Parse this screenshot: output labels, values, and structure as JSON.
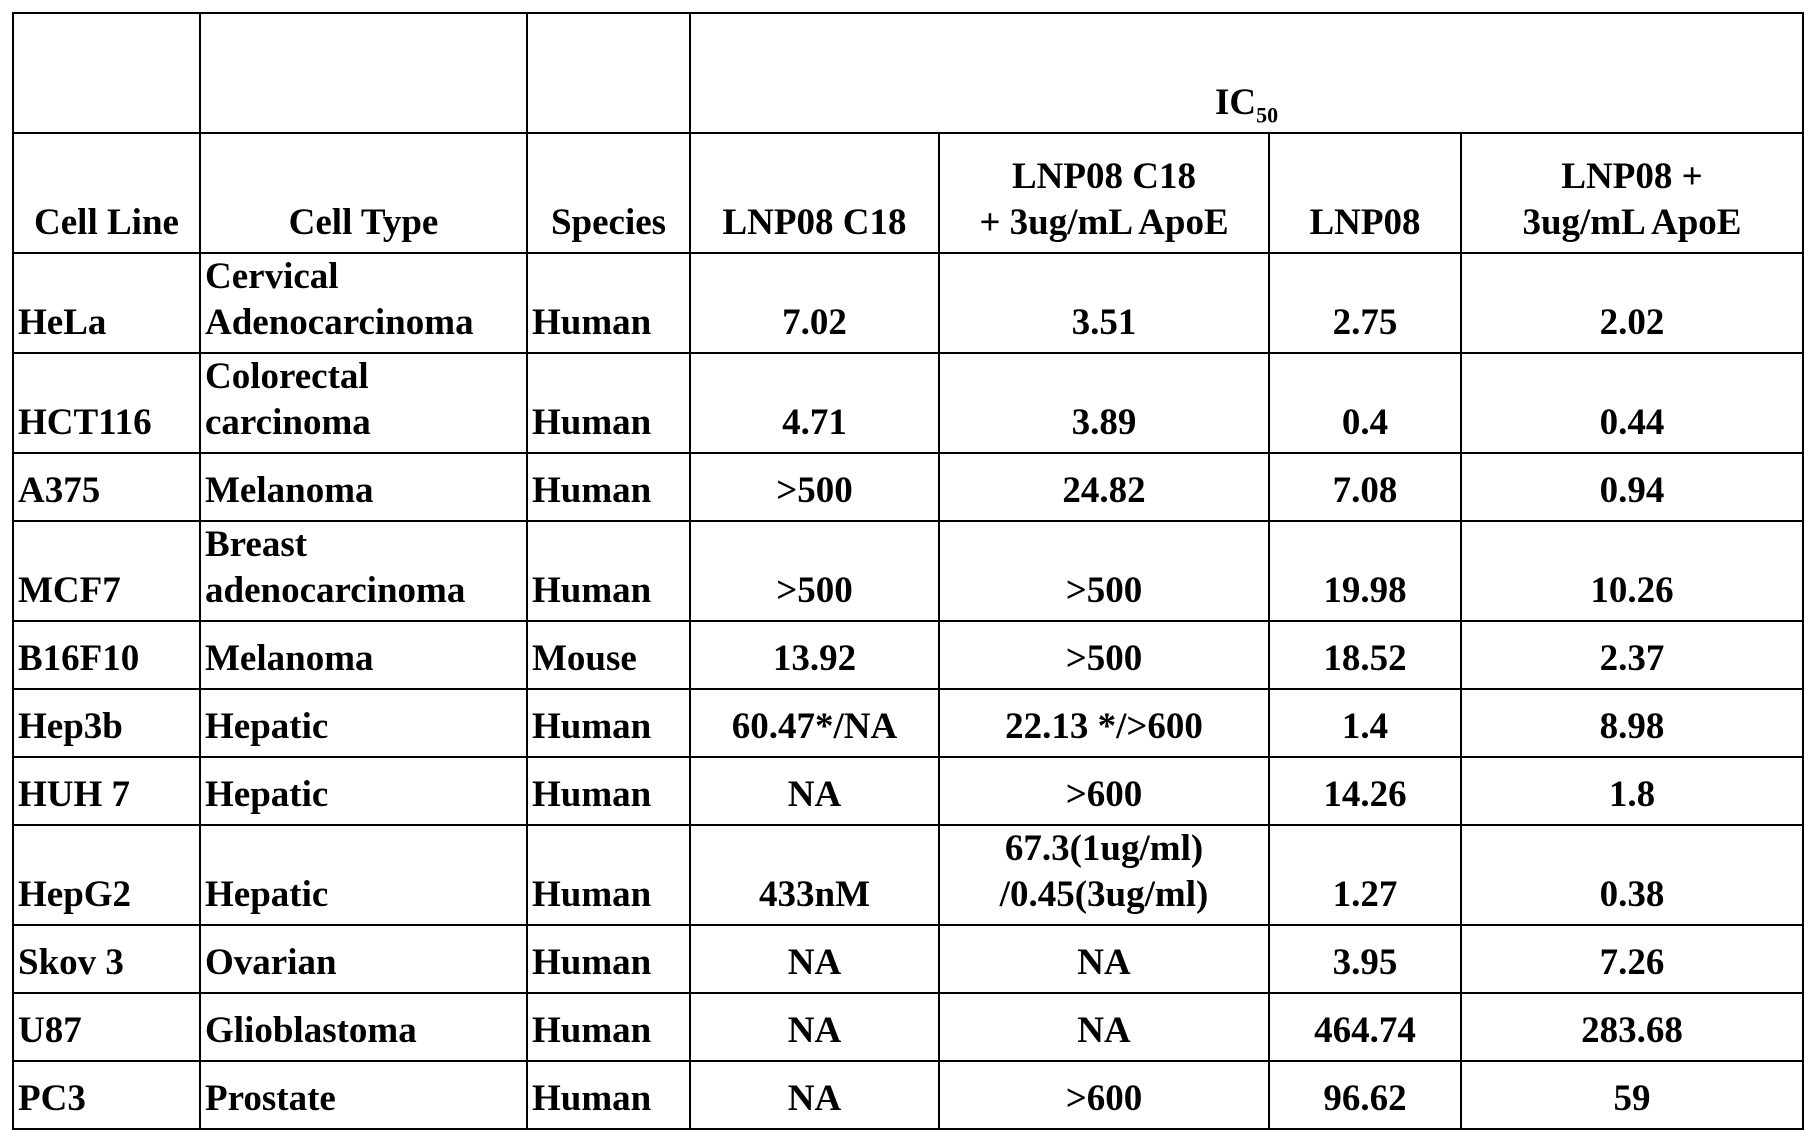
{
  "group_header": {
    "main": "IC",
    "subscript": "50"
  },
  "columns": [
    "Cell Line",
    "Cell Type",
    "Species",
    "LNP08 C18",
    "LNP08 C18 + 3ug/mL ApoE",
    "LNP08",
    "LNP08 + 3ug/mL ApoE"
  ],
  "column_lines": {
    "c4": [
      "LNP08 C18",
      "+ 3ug/mL ApoE"
    ],
    "c6": [
      "LNP08 +",
      "3ug/mL ApoE"
    ]
  },
  "rows": [
    {
      "cell_line": "HeLa",
      "cell_type_lines": [
        "Cervical",
        "Adenocarcinoma"
      ],
      "species": "Human",
      "c3": "7.02",
      "c4_lines": [
        "3.51"
      ],
      "c5": "2.75",
      "c6": "2.02"
    },
    {
      "cell_line": "HCT116",
      "cell_type_lines": [
        "Colorectal",
        "carcinoma"
      ],
      "species": "Human",
      "c3": "4.71",
      "c4_lines": [
        "3.89"
      ],
      "c5": "0.4",
      "c6": "0.44"
    },
    {
      "cell_line": "A375",
      "cell_type_lines": [
        "Melanoma"
      ],
      "species": "Human",
      "c3": ">500",
      "c4_lines": [
        "24.82"
      ],
      "c5": "7.08",
      "c6": "0.94"
    },
    {
      "cell_line": "MCF7",
      "cell_type_lines": [
        "Breast",
        "adenocarcinoma"
      ],
      "species": "Human",
      "c3": ">500",
      "c4_lines": [
        ">500"
      ],
      "c5": "19.98",
      "c6": "10.26"
    },
    {
      "cell_line": "B16F10",
      "cell_type_lines": [
        "Melanoma"
      ],
      "species": "Mouse",
      "c3": "13.92",
      "c4_lines": [
        ">500"
      ],
      "c5": "18.52",
      "c6": "2.37"
    },
    {
      "cell_line": "Hep3b",
      "cell_type_lines": [
        "Hepatic"
      ],
      "species": "Human",
      "c3": "60.47*/NA",
      "c4_lines": [
        "22.13 */>600"
      ],
      "c5": "1.4",
      "c6": "8.98"
    },
    {
      "cell_line": "HUH 7",
      "cell_type_lines": [
        "Hepatic"
      ],
      "species": "Human",
      "c3": "NA",
      "c4_lines": [
        ">600"
      ],
      "c5": "14.26",
      "c6": "1.8"
    },
    {
      "cell_line": "HepG2",
      "cell_type_lines": [
        "Hepatic"
      ],
      "species": "Human",
      "c3": "433nM",
      "c4_lines": [
        "67.3(1ug/ml)",
        "/0.45(3ug/ml)"
      ],
      "c5": "1.27",
      "c6": "0.38"
    },
    {
      "cell_line": "Skov 3",
      "cell_type_lines": [
        "Ovarian"
      ],
      "species": "Human",
      "c3": "NA",
      "c4_lines": [
        "NA"
      ],
      "c5": "3.95",
      "c6": "7.26"
    },
    {
      "cell_line": "U87",
      "cell_type_lines": [
        "Glioblastoma"
      ],
      "species": "Human",
      "c3": "NA",
      "c4_lines": [
        "NA"
      ],
      "c5": "464.74",
      "c6": "283.68"
    },
    {
      "cell_line": "PC3",
      "cell_type_lines": [
        "Prostate"
      ],
      "species": "Human",
      "c3": "NA",
      "c4_lines": [
        ">600"
      ],
      "c5": "96.62",
      "c6": "59"
    }
  ]
}
